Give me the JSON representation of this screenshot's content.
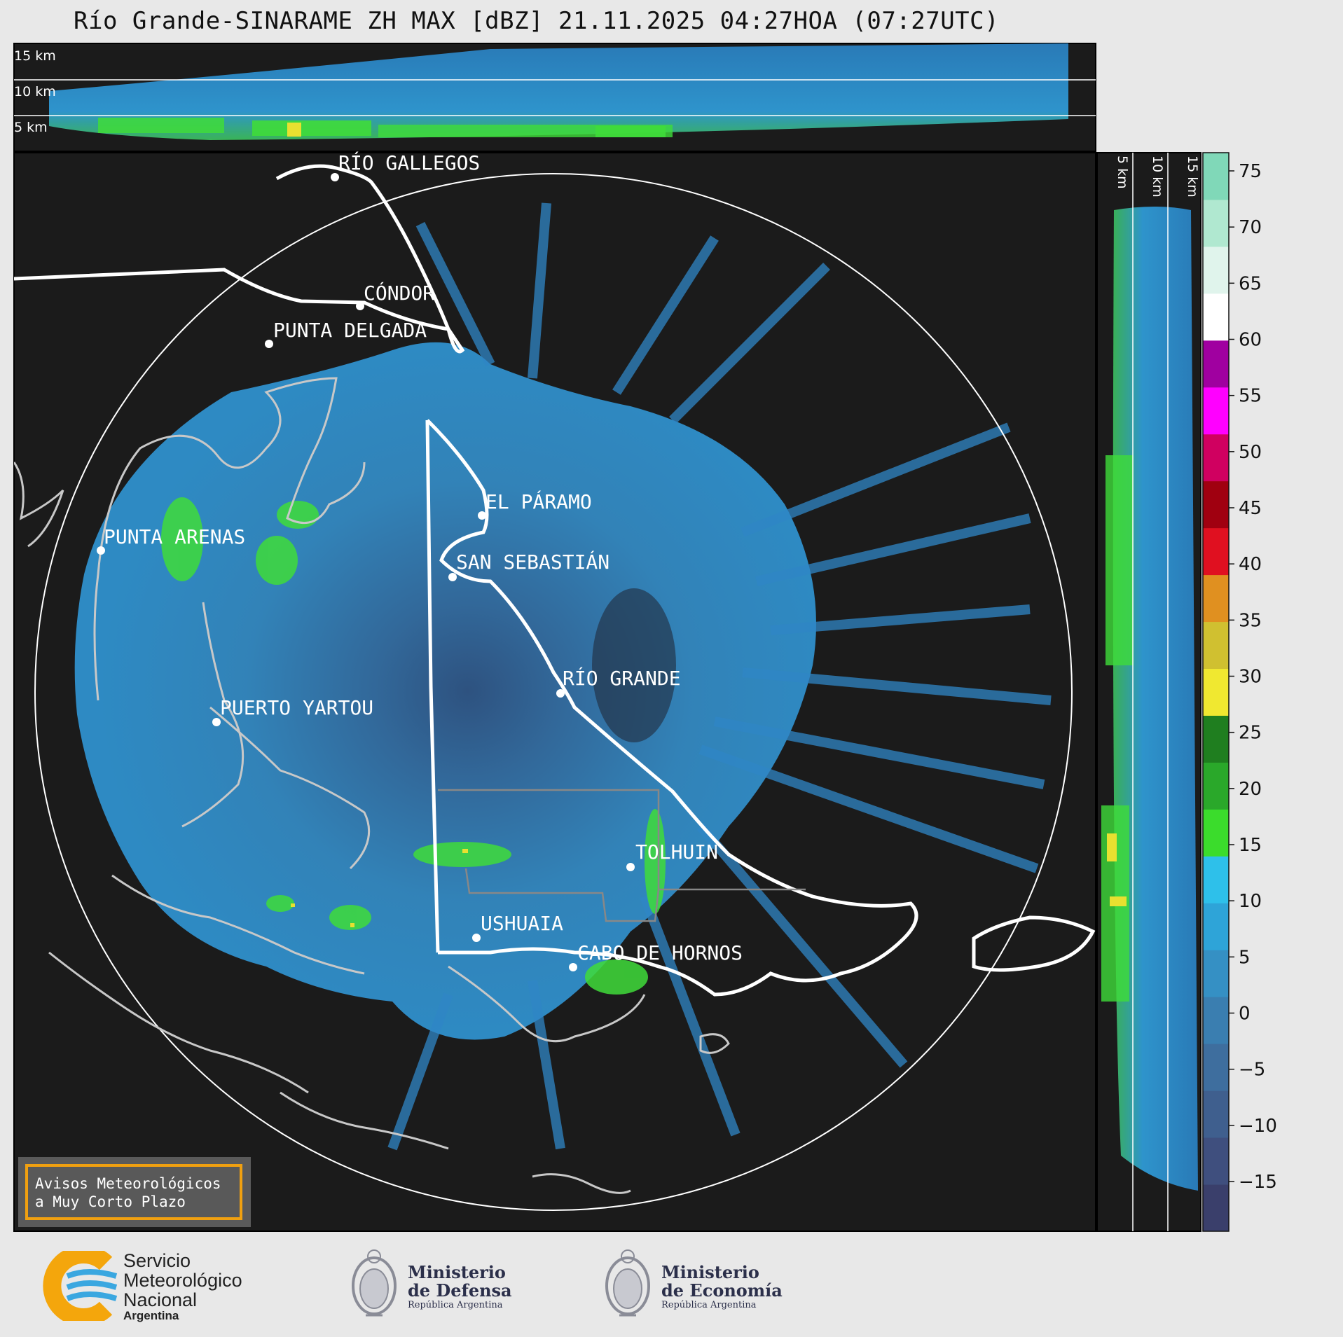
{
  "header": {
    "title": "Río Grande-SINARAME ZH MAX [dBZ] 21.11.2025 04:27HOA (07:27UTC)"
  },
  "top_panel": {
    "height_labels": [
      "15 km",
      "10 km",
      "5 km"
    ]
  },
  "side_panel": {
    "height_labels": [
      "5 km",
      "10 km",
      "15 km"
    ]
  },
  "colorbar": {
    "ticks": [
      "75",
      "70",
      "65",
      "60",
      "55",
      "50",
      "45",
      "40",
      "35",
      "30",
      "25",
      "20",
      "15",
      "10",
      "5",
      "0",
      "−5",
      "−10",
      "−15"
    ],
    "unit": "dBZ",
    "scale_colors": [
      "#3a3f6b",
      "#3f4f7e",
      "#3f5f8e",
      "#3e6e9e",
      "#3a7eb0",
      "#3590c4",
      "#2ea4d8",
      "#2ec0ea",
      "#3bdc2c",
      "#2aa82a",
      "#1f7e1f",
      "#f0e830",
      "#d0c030",
      "#e09020",
      "#e01020",
      "#a00010",
      "#d00060",
      "#ff00ff",
      "#a000a0",
      "#ffffff",
      "#e0f4ec",
      "#b0e8d0",
      "#80d8b8"
    ]
  },
  "map": {
    "cities": [
      {
        "name": "RÍO GALLEGOS"
      },
      {
        "name": "CÓNDOR"
      },
      {
        "name": "PUNTA DELGADA"
      },
      {
        "name": "EL PÁRAMO"
      },
      {
        "name": "PUNTA ARENAS"
      },
      {
        "name": "SAN SEBASTIÁN"
      },
      {
        "name": "RÍO GRANDE"
      },
      {
        "name": "PUERTO YARTOU"
      },
      {
        "name": "TOLHUIN"
      },
      {
        "name": "USHUAIA"
      },
      {
        "name": "CABO DE HORNOS"
      }
    ]
  },
  "notice": {
    "line1": "Avisos Meteorológicos",
    "line2": "a Muy Corto Plazo"
  },
  "footer": {
    "smn": {
      "line1": "Servicio",
      "line2": "Meteorológico",
      "line3": "Nacional",
      "line4": "Argentina"
    },
    "defensa": {
      "line1": "Ministerio",
      "line2": "de Defensa",
      "line3": "República Argentina"
    },
    "economia": {
      "line1": "Ministerio",
      "line2": "de Economía",
      "line3": "República Argentina"
    }
  }
}
